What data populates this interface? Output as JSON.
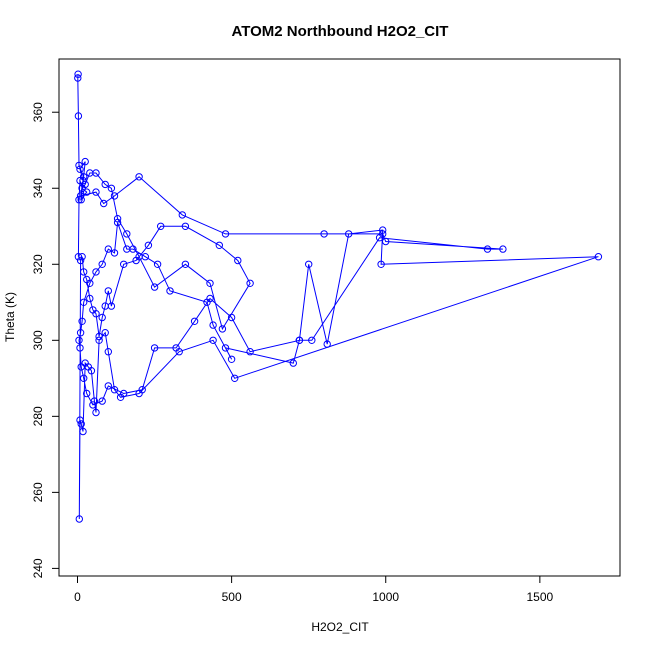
{
  "chart_data": {
    "type": "scatter",
    "title": "ATOM2 Northbound H2O2_CIT",
    "xlabel": "H2O2_CIT",
    "ylabel": "Theta (K)",
    "xlim": [
      -60,
      1760
    ],
    "ylim": [
      238,
      374
    ],
    "x_ticks": [
      0,
      500,
      1000,
      1500
    ],
    "y_ticks": [
      240,
      260,
      280,
      300,
      320,
      340,
      360
    ],
    "color": "#0000ff",
    "marker": "open-circle",
    "connected": true,
    "x": [
      2,
      1,
      3,
      5,
      20,
      15,
      30,
      12,
      25,
      8,
      18,
      10,
      60,
      85,
      120,
      200,
      340,
      480,
      800,
      990,
      1000,
      1380,
      1330,
      980,
      760,
      720,
      700,
      480,
      500,
      440,
      420,
      300,
      260,
      220,
      180,
      160,
      130,
      120,
      100,
      80,
      60,
      40,
      20,
      15,
      10,
      5,
      8,
      12,
      20,
      30,
      50,
      80,
      100,
      150,
      210,
      250,
      320,
      380,
      430,
      500,
      560,
      720,
      750,
      810,
      880,
      990,
      985,
      1690,
      510,
      440,
      330,
      200,
      140,
      120,
      100,
      90,
      70,
      60,
      55,
      45,
      35,
      25,
      18,
      12,
      8,
      6,
      10,
      15,
      20,
      30,
      40,
      50,
      60,
      70,
      80,
      90,
      100,
      110,
      150,
      190,
      230,
      270,
      350,
      460,
      520,
      560,
      470,
      430,
      350,
      250,
      200,
      160,
      130,
      110,
      90,
      60,
      40,
      25,
      15,
      8,
      5,
      3
    ],
    "y": [
      370,
      369,
      359,
      346,
      343,
      340,
      339,
      337,
      347,
      345,
      342,
      338,
      339,
      336,
      338,
      343,
      333,
      328,
      328,
      328,
      326,
      324,
      324,
      327,
      300,
      300,
      294,
      298,
      295,
      304,
      310,
      313,
      320,
      322,
      324,
      324,
      331,
      323,
      324,
      320,
      318,
      315,
      310,
      305,
      302,
      300,
      298,
      293,
      290,
      286,
      283,
      284,
      288,
      286,
      287,
      298,
      298,
      305,
      311,
      306,
      297,
      300,
      320,
      299,
      328,
      329,
      320,
      322,
      290,
      300,
      297,
      286,
      285,
      287,
      297,
      302,
      300,
      281,
      284,
      292,
      293,
      294,
      276,
      278,
      279,
      253,
      321,
      322,
      318,
      316,
      311,
      308,
      307,
      301,
      306,
      309,
      313,
      309,
      320,
      321,
      325,
      330,
      330,
      325,
      321,
      315,
      303,
      315,
      320,
      314,
      322,
      328,
      332,
      340,
      341,
      344,
      344,
      341,
      340,
      342,
      337,
      322
    ]
  }
}
